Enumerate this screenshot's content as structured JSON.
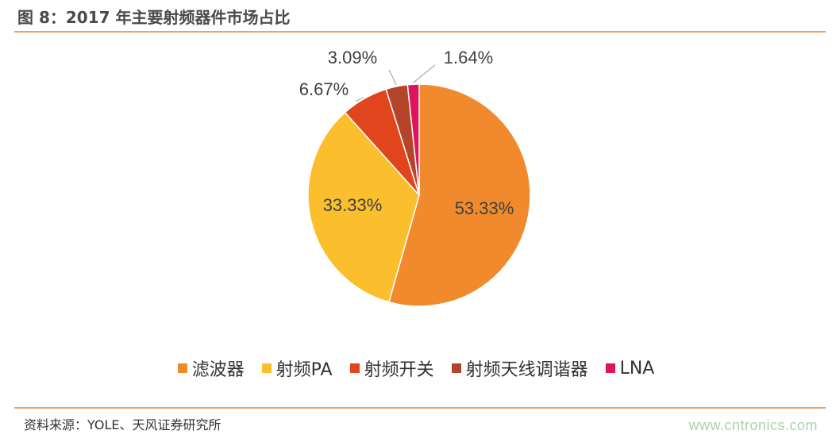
{
  "header": {
    "title": "图 8：2017 年主要射频器件市场占比"
  },
  "footer": {
    "source": "资料来源：YOLE、天风证券研究所",
    "watermark": "www.cntronics.com"
  },
  "chart_data": {
    "type": "pie",
    "title": "",
    "categories": [
      "滤波器",
      "射频PA",
      "射频开关",
      "射频天线调谐器",
      "LNA"
    ],
    "values": [
      53.33,
      33.33,
      6.67,
      3.09,
      1.64
    ],
    "labels": [
      "53.33%",
      "33.33%",
      "6.67%",
      "3.09%",
      "1.64%"
    ],
    "colors": [
      "#f08a2c",
      "#fbbf2e",
      "#e0451e",
      "#b5452a",
      "#e0145a"
    ],
    "legend": "bottom"
  }
}
